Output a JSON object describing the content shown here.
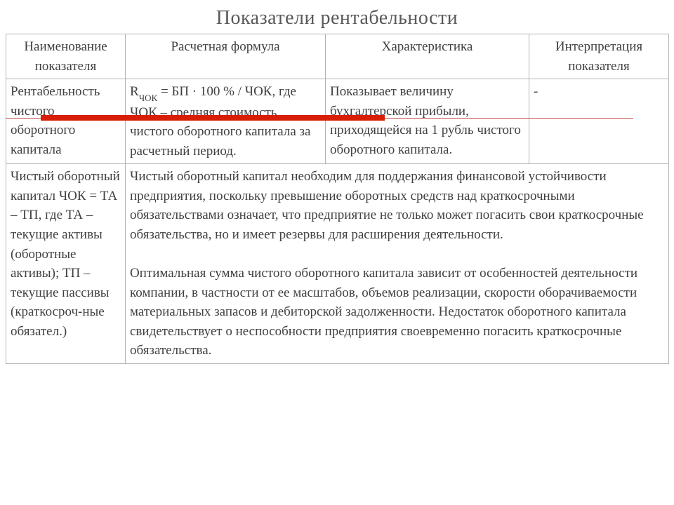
{
  "title": "Показатели рентабельности",
  "table": {
    "columns": [
      "Наименование показателя",
      "Расчетная формула",
      "Характеристика",
      "Интерпретация показателя"
    ],
    "row1": {
      "name": "Рентабельность чистого оборотного капитала",
      "formula_prefix": "R",
      "formula_sub": "ЧОК",
      "formula_rest": " = БП · 100 % / ЧОК, где ЧОК – средняя стоимость чистого оборотного капитала за расчетный период.",
      "characteristic": "Показывает величину бухгалтерской прибыли, приходящейся на 1 рубль чистого оборотного капитала.",
      "interpretation": "-"
    },
    "row2": {
      "name": "Чистый оборотный капитал ЧОК = ТА – ТП, где ТА – текущие активы (оборотные активы); ТП – текущие пассивы (краткосроч-ные обязател.)",
      "desc_p1": "Чистый оборотный капитал необходим для поддержания финансовой устойчивости предприятия, поскольку превышение оборотных средств над краткосрочными обязательствами означает, что предприятие не только может погасить свои краткосрочные обязательства, но и имеет резервы для расширения деятельности.",
      "desc_p2": "Оптимальная сумма чистого оборотного капитала зависит от особенностей деятельности компании, в частности от ее масштабов, объемов реализации, скорости оборачиваемости материальных запасов и дебиторской задолженности. Недостаток оборотного капитала свидетельствует о неспособности предприятия своевременно погасить краткосрочные обязательства."
    }
  },
  "style": {
    "accent_red": "#d81e05",
    "thin_red": "#c0504d",
    "border_color": "#b3b3b3",
    "text_color": "#404040",
    "title_fontsize": 28,
    "cell_fontsize": 19
  }
}
